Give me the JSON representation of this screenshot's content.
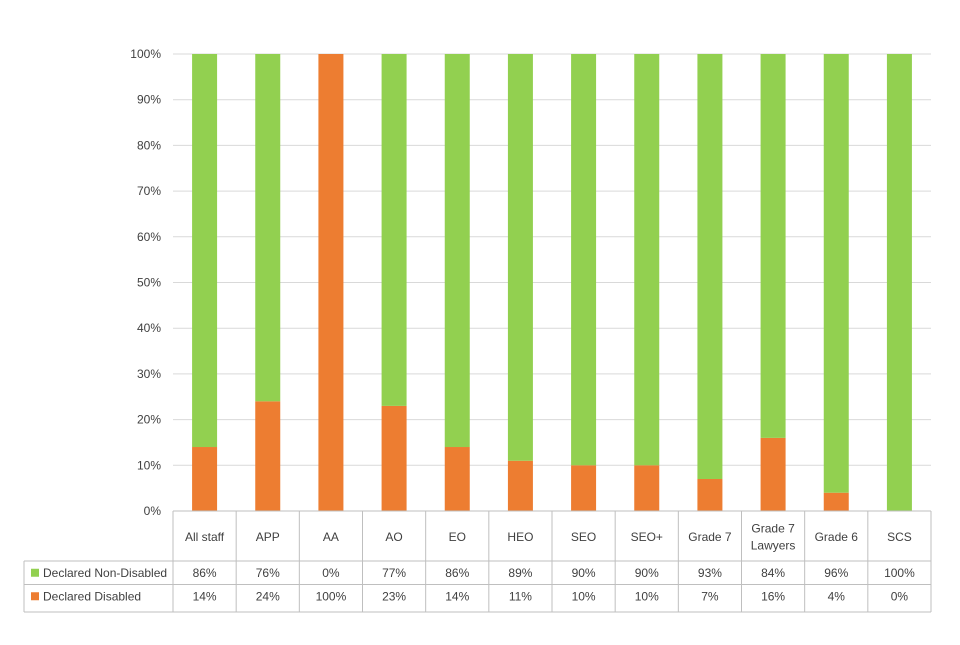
{
  "chart_data": {
    "type": "bar",
    "stacked": true,
    "percent": true,
    "title": "",
    "xlabel": "",
    "ylabel": "",
    "ylim": [
      0,
      100
    ],
    "y_ticks": [
      "0%",
      "10%",
      "20%",
      "30%",
      "40%",
      "50%",
      "60%",
      "70%",
      "80%",
      "90%",
      "100%"
    ],
    "grid": true,
    "legend": "data-table-left",
    "categories": [
      [
        "All staff"
      ],
      [
        "APP"
      ],
      [
        "AA"
      ],
      [
        "AO"
      ],
      [
        "EO"
      ],
      [
        "HEO"
      ],
      [
        "SEO"
      ],
      [
        "SEO+"
      ],
      [
        "Grade 7"
      ],
      [
        "Grade 7",
        "Lawyers"
      ],
      [
        "Grade 6"
      ],
      [
        "SCS"
      ]
    ],
    "series": [
      {
        "name": "Declared Non-Disabled",
        "color": "#92D050",
        "values": [
          86,
          76,
          0,
          77,
          86,
          89,
          90,
          90,
          93,
          84,
          96,
          100
        ],
        "labels": [
          "86%",
          "76%",
          "0%",
          "77%",
          "86%",
          "89%",
          "90%",
          "90%",
          "93%",
          "84%",
          "96%",
          "100%"
        ]
      },
      {
        "name": "Declared Disabled",
        "color": "#ED7D31",
        "values": [
          14,
          24,
          100,
          23,
          14,
          11,
          10,
          10,
          7,
          16,
          4,
          0
        ],
        "labels": [
          "14%",
          "24%",
          "100%",
          "23%",
          "14%",
          "11%",
          "10%",
          "10%",
          "7%",
          "16%",
          "4%",
          "0%"
        ]
      }
    ]
  }
}
